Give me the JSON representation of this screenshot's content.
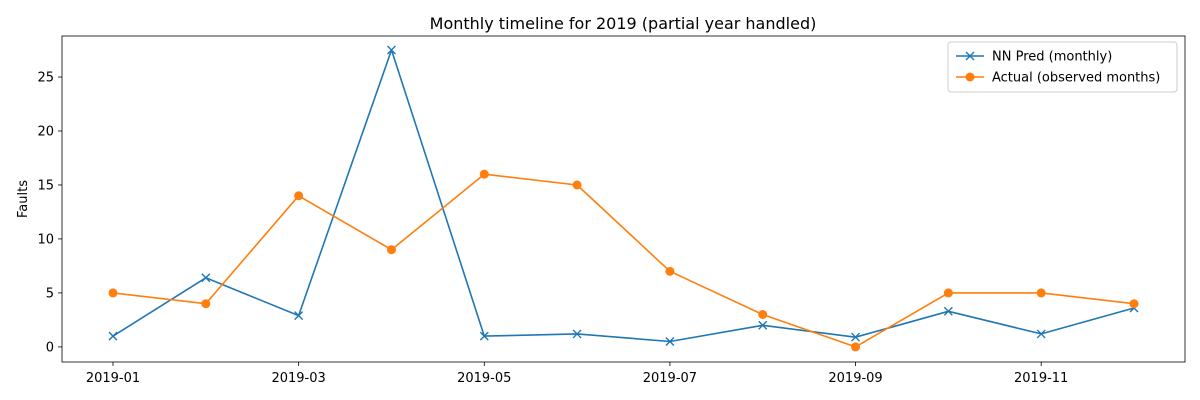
{
  "chart_data": {
    "type": "line",
    "title": "Monthly timeline for 2019 (partial year handled)",
    "xlabel": "",
    "ylabel": "Faults",
    "x": [
      "2019-01",
      "2019-02",
      "2019-03",
      "2019-04",
      "2019-05",
      "2019-06",
      "2019-07",
      "2019-08",
      "2019-09",
      "2019-10",
      "2019-11",
      "2019-12"
    ],
    "xticks": [
      "2019-01",
      "2019-03",
      "2019-05",
      "2019-07",
      "2019-09",
      "2019-11"
    ],
    "yticks": [
      0,
      5,
      10,
      15,
      20,
      25
    ],
    "ylim": [
      -1.4,
      28.8
    ],
    "grid": false,
    "legend_position": "top-right",
    "series": [
      {
        "name": "NN Pred (monthly)",
        "color": "#1f77b4",
        "marker": "x",
        "values": [
          1.0,
          6.4,
          2.9,
          27.5,
          1.0,
          1.2,
          0.5,
          2.0,
          0.9,
          3.3,
          1.2,
          3.6
        ]
      },
      {
        "name": "Actual (observed months)",
        "color": "#ff7f0e",
        "marker": "o",
        "values": [
          5,
          4,
          14,
          9,
          16,
          15,
          7,
          3,
          0,
          5,
          5,
          4
        ]
      }
    ]
  }
}
